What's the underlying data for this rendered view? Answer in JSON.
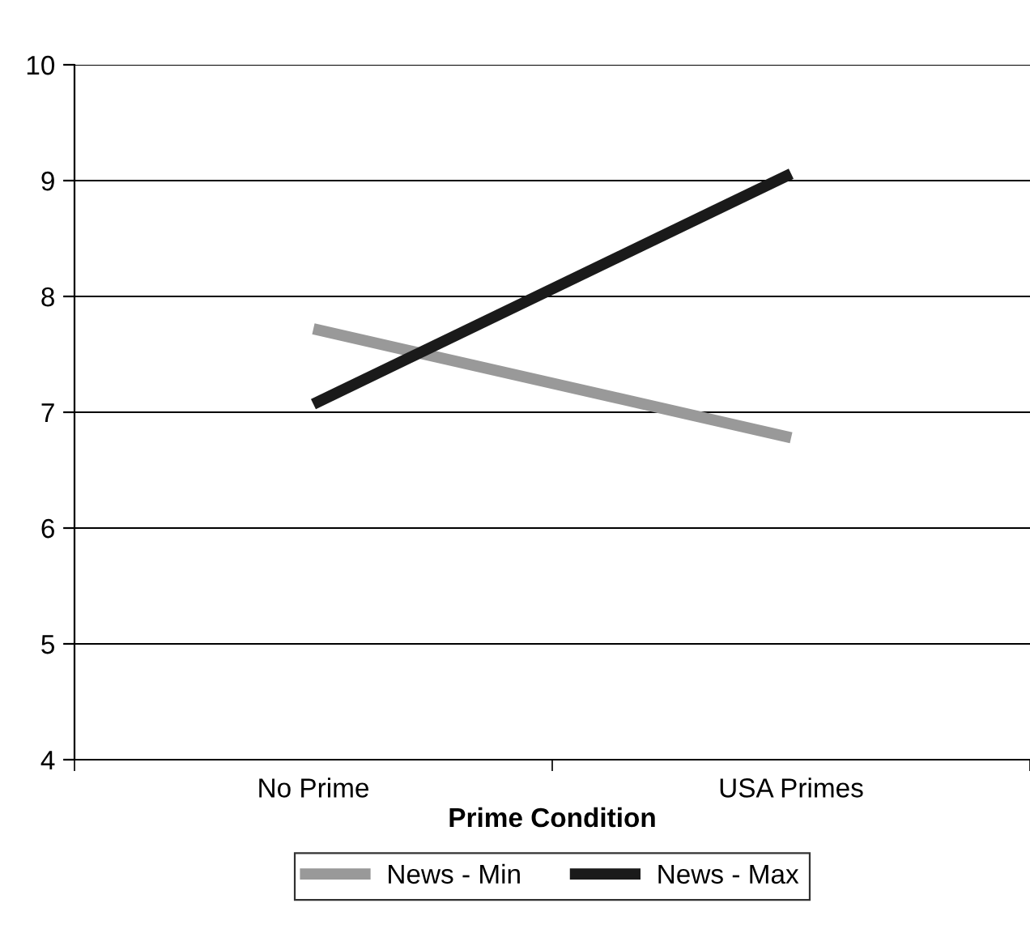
{
  "chart_data": {
    "type": "line",
    "xlabel": "Prime Condition",
    "categories": [
      "No Prime",
      "USA Primes"
    ],
    "series": [
      {
        "name": "News - Min",
        "color": "#999999",
        "values": [
          7.72,
          6.78
        ]
      },
      {
        "name": "News - Max",
        "color": "#1a1a1a",
        "values": [
          7.07,
          9.06
        ]
      }
    ],
    "ylim": [
      4,
      10
    ],
    "yticks": [
      4,
      5,
      6,
      7,
      8,
      9,
      10
    ],
    "grid": "y",
    "legend": "bottom",
    "marker": "none",
    "line_style": "solid"
  }
}
